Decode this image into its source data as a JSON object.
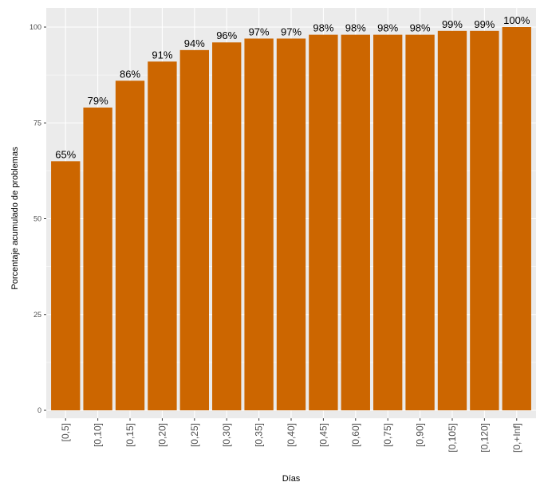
{
  "chart_data": {
    "type": "bar",
    "title": "",
    "xlabel": "Días",
    "ylabel": "Porcentaje acumulado de problemas",
    "categories": [
      "[0,5]",
      "[0,10]",
      "[0,15]",
      "[0,20]",
      "[0,25]",
      "[0,30]",
      "[0,35]",
      "[0,40]",
      "[0,45]",
      "[0,60]",
      "[0,75]",
      "[0,90]",
      "[0,105]",
      "[0,120]",
      "[0,+Inf]"
    ],
    "values": [
      65,
      79,
      86,
      91,
      94,
      96,
      97,
      97,
      98,
      98,
      98,
      98,
      99,
      99,
      100
    ],
    "data_labels": [
      "65%",
      "79%",
      "86%",
      "91%",
      "94%",
      "96%",
      "97%",
      "97%",
      "98%",
      "98%",
      "98%",
      "98%",
      "99%",
      "99%",
      "100%"
    ],
    "ylim": [
      0,
      100
    ],
    "yticks": [
      0,
      25,
      50,
      75,
      100
    ],
    "ytick_labels": [
      "0",
      "25",
      "50",
      "75",
      "100"
    ],
    "grid": true,
    "legend": "none",
    "colors": {
      "bar": "#cc6600",
      "panel_background": "#ebebeb",
      "grid": "#ffffff"
    }
  }
}
